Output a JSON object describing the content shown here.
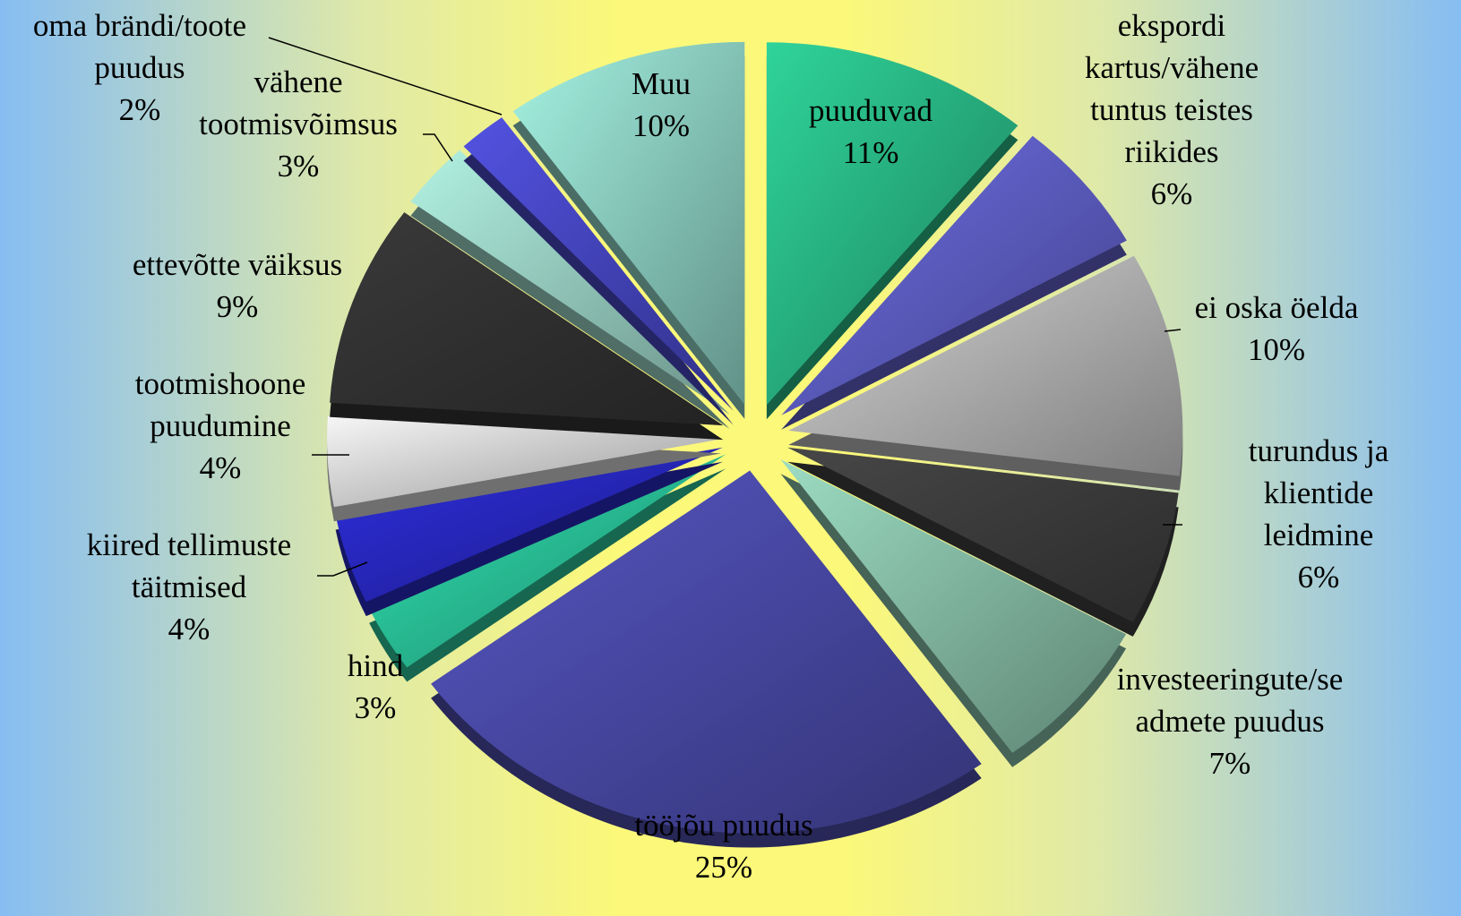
{
  "chart_data": {
    "type": "pie",
    "categories": [
      "puuduvad",
      "ekspordi\nkartus/vähene\ntuntus teistes\nriikides",
      "ei oska öelda",
      "turundus ja\nklientide leidmine",
      "investeeringute/se\nadmete puudus",
      "tööjõu puudus",
      "hind",
      "kiired tellimuste\ntäitmised",
      "tootmishoone\npuudumine",
      "ettevõtte väiksus",
      "vähene\ntootmisvõimsus",
      "oma brändi/toote\npuudus",
      "Muu"
    ],
    "values": [
      11,
      6,
      10,
      6,
      7,
      25,
      3,
      4,
      4,
      9,
      3,
      2,
      10
    ],
    "value_labels": [
      "11%",
      "6%",
      "10%",
      "6%",
      "7%",
      "25%",
      "3%",
      "4%",
      "4%",
      "9%",
      "3%",
      "2%",
      "10%"
    ],
    "colors": [
      "#2fd49a",
      "#6e6ee6",
      "#d4d4d4",
      "#474747",
      "#9cdcc2",
      "#5656c4",
      "#30e2b2",
      "#2e2ee0",
      "#f6f6f6",
      "#3a3a3a",
      "#b2f2e2",
      "#5252e2",
      "#a4f2e2"
    ]
  }
}
